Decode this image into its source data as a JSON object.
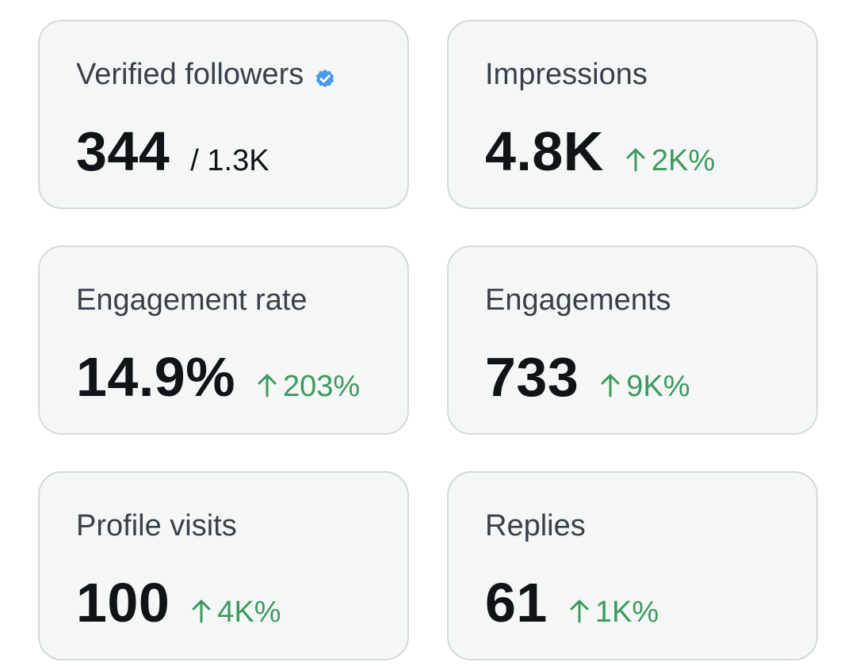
{
  "cards": [
    {
      "label": "Verified followers",
      "value": "344",
      "secondary": "/ 1.3K",
      "verified_icon": "verified-badge-icon"
    },
    {
      "label": "Impressions",
      "value": "4.8K",
      "change": "2K%",
      "change_icon": "arrow-up-icon"
    },
    {
      "label": "Engagement rate",
      "value": "14.9%",
      "change": "203%",
      "change_icon": "arrow-up-icon"
    },
    {
      "label": "Engagements",
      "value": "733",
      "change": "9K%",
      "change_icon": "arrow-up-icon"
    },
    {
      "label": "Profile visits",
      "value": "100",
      "change": "4K%",
      "change_icon": "arrow-up-icon"
    },
    {
      "label": "Replies",
      "value": "61",
      "change": "1K%",
      "change_icon": "arrow-up-icon"
    }
  ],
  "colors": {
    "card_background": "#f5f7f7",
    "card_border": "#d3dadb",
    "label_text": "#37414a",
    "value_text": "#0f1419",
    "positive_change": "#3d9a5e",
    "verified_badge": "#4a99e9"
  }
}
